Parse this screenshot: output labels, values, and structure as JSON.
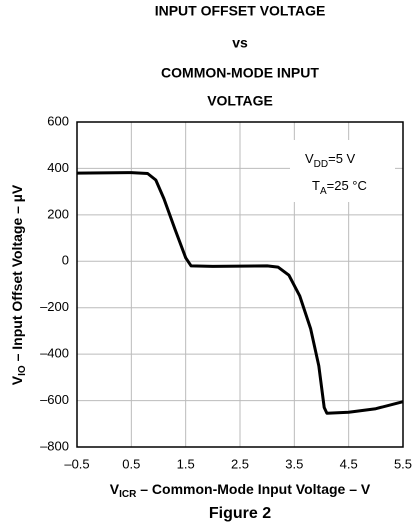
{
  "chart_data": {
    "type": "line",
    "title": [
      "INPUT OFFSET VOLTAGE",
      "vs",
      "COMMON-MODE INPUT",
      "VOLTAGE"
    ],
    "xlabel": [
      "V",
      "ICR",
      " – Common-Mode Input Voltage – V"
    ],
    "ylabel": [
      "V",
      "IO",
      " – Input Offset Voltage – µV"
    ],
    "annotations": [
      [
        "V",
        "DD",
        "=5 V"
      ],
      [
        "T",
        "A",
        "=25 °C"
      ]
    ],
    "caption": "Figure 2",
    "grid": true,
    "xlim": [
      -0.5,
      5.5
    ],
    "xticks": [
      {
        "value": -0.5,
        "label": "–0.5"
      },
      0.5,
      1.5,
      2.5,
      3.5,
      4.5,
      5.5
    ],
    "ylim": [
      -800,
      600
    ],
    "yticks": [
      600,
      400,
      200,
      0,
      {
        "value": -200,
        "label": "–200"
      },
      {
        "value": -400,
        "label": "–400"
      },
      {
        "value": -600,
        "label": "–600"
      },
      {
        "value": -800,
        "label": "–800"
      }
    ],
    "x": [
      -0.5,
      0.5,
      0.8,
      0.95,
      1.1,
      1.3,
      1.5,
      1.6,
      2,
      3,
      3.2,
      3.4,
      3.6,
      3.8,
      3.95,
      4.05,
      4.1,
      4.5,
      5,
      5.5
    ],
    "series": [
      {
        "color": "#000000",
        "values": [
          380,
          382,
          378,
          350,
          270,
          140,
          15,
          -20,
          -22,
          -20,
          -25,
          -60,
          -150,
          -290,
          -450,
          -630,
          -655,
          -650,
          -635,
          -605
        ]
      }
    ]
  }
}
